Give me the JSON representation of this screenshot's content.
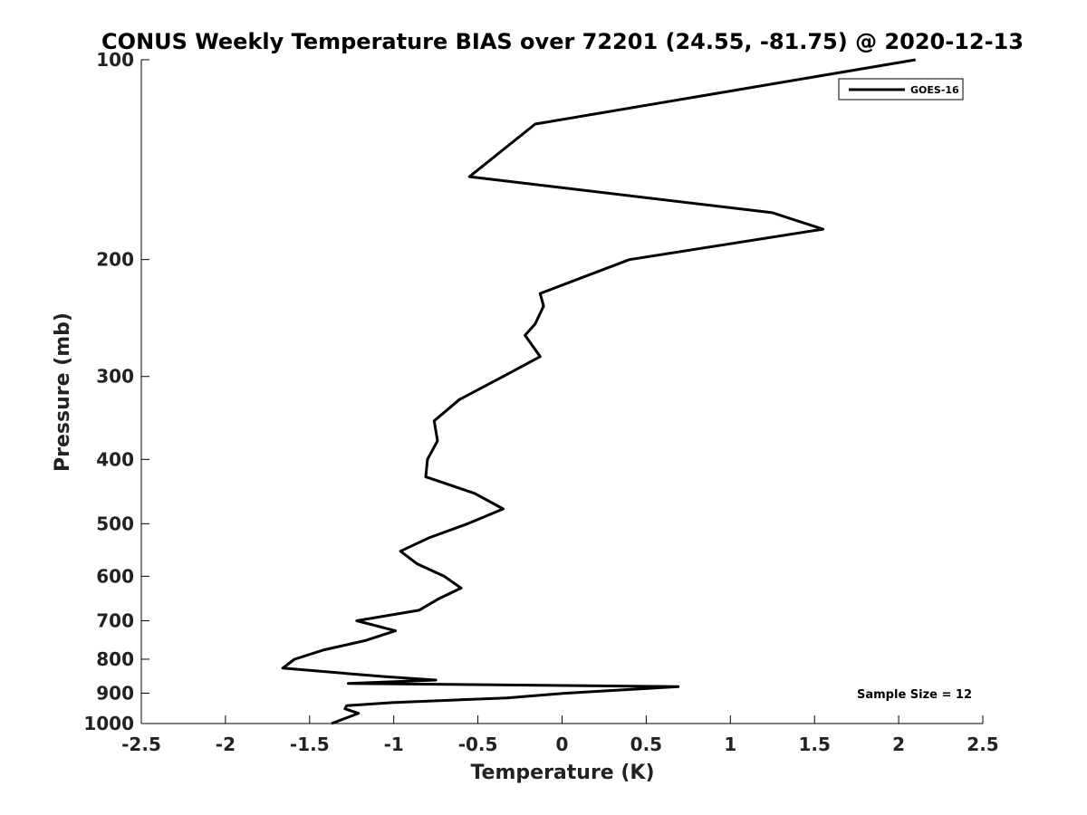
{
  "chart_data": {
    "type": "line",
    "title": "CONUS Weekly Temperature BIAS over 72201 (24.55, -81.75) @ 2020-12-13",
    "xlabel": "Temperature (K)",
    "ylabel": "Pressure (mb)",
    "xlim": [
      -2.5,
      2.5
    ],
    "ylim": [
      1000,
      100
    ],
    "yscale": "log",
    "y_reversed": true,
    "grid": false,
    "legend_placement": "top-right",
    "x_ticks": [
      "-2.5",
      "-2",
      "-1.5",
      "-1",
      "-0.5",
      "0",
      "0.5",
      "1",
      "1.5",
      "2",
      "2.5"
    ],
    "x_tick_values": [
      -2.5,
      -2,
      -1.5,
      -1,
      -0.5,
      0,
      0.5,
      1,
      1.5,
      2,
      2.5
    ],
    "y_ticks": [
      "100",
      "200",
      "300",
      "400",
      "500",
      "600",
      "700",
      "800",
      "900",
      "1000"
    ],
    "y_tick_values": [
      100,
      200,
      300,
      400,
      500,
      600,
      700,
      800,
      900,
      1000
    ],
    "series": [
      {
        "name": "GOES-16",
        "color": "#000000",
        "points": [
          [
            2.1,
            100
          ],
          [
            -0.16,
            125
          ],
          [
            -0.55,
            150
          ],
          [
            1.25,
            170
          ],
          [
            1.55,
            180
          ],
          [
            0.4,
            200
          ],
          [
            -0.13,
            225
          ],
          [
            -0.11,
            235
          ],
          [
            -0.16,
            250
          ],
          [
            -0.22,
            260
          ],
          [
            -0.13,
            280
          ],
          [
            -0.35,
            300
          ],
          [
            -0.61,
            325
          ],
          [
            -0.76,
            350
          ],
          [
            -0.74,
            375
          ],
          [
            -0.8,
            400
          ],
          [
            -0.81,
            425
          ],
          [
            -0.52,
            450
          ],
          [
            -0.35,
            475
          ],
          [
            -0.56,
            500
          ],
          [
            -0.79,
            525
          ],
          [
            -0.96,
            550
          ],
          [
            -0.86,
            575
          ],
          [
            -0.7,
            600
          ],
          [
            -0.6,
            625
          ],
          [
            -0.74,
            650
          ],
          [
            -0.85,
            675
          ],
          [
            -1.22,
            700
          ],
          [
            -0.99,
            725
          ],
          [
            -1.17,
            750
          ],
          [
            -1.42,
            775
          ],
          [
            -1.59,
            800
          ],
          [
            -1.66,
            825
          ],
          [
            -1.05,
            850
          ],
          [
            -0.75,
            860
          ],
          [
            -1.27,
            870
          ],
          [
            0.69,
            880
          ],
          [
            0.02,
            900
          ],
          [
            -0.33,
            915
          ],
          [
            -1.01,
            930
          ],
          [
            -1.28,
            940
          ],
          [
            -1.29,
            950
          ],
          [
            -1.21,
            965
          ],
          [
            -1.37,
            1000
          ]
        ]
      }
    ],
    "annotations": [
      "Sample Size = 12"
    ]
  }
}
